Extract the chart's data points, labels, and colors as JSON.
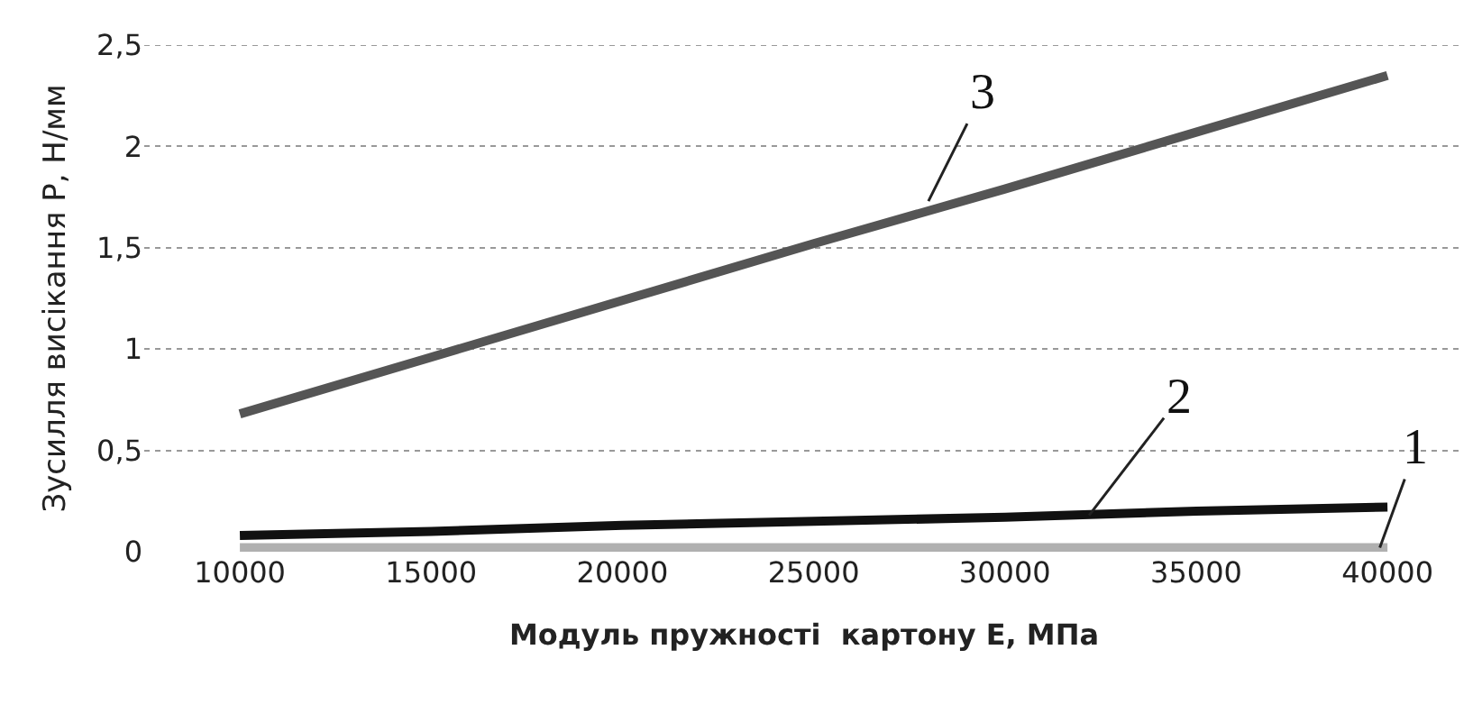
{
  "chart_data": {
    "type": "line",
    "xlabel": "Модуль пружності  картону E, МПа",
    "ylabel": "Зусилля висікання P, Н/мм",
    "x": [
      10000,
      15000,
      20000,
      25000,
      30000,
      35000,
      40000
    ],
    "series": [
      {
        "color": "#b0b0b0",
        "values": [
          0.02,
          0.02,
          0.02,
          0.02,
          0.02,
          0.02,
          0.02
        ]
      },
      {
        "color": "#111111",
        "values": [
          0.08,
          0.1,
          0.13,
          0.15,
          0.17,
          0.2,
          0.22
        ]
      },
      {
        "color": "#555555",
        "values": [
          0.68,
          0.96,
          1.24,
          1.52,
          1.79,
          2.07,
          2.35
        ]
      }
    ],
    "xlim": [
      7500,
      42000
    ],
    "xticks": [
      10000,
      15000,
      20000,
      25000,
      30000,
      35000,
      40000
    ],
    "ylim": [
      0,
      2.5
    ],
    "yticks": [
      0,
      {
        "value": 0.5,
        "label": "0,5"
      },
      1,
      {
        "value": 1.5,
        "label": "1,5"
      },
      2,
      {
        "value": 2.5,
        "label": "2,5"
      }
    ],
    "grid": "y",
    "marker": "none",
    "line_style": "solid",
    "annotations": [
      {
        "text": "1",
        "x": 39800,
        "y": 0.02
      },
      {
        "text": "2",
        "x": 32200,
        "y": 0.18
      },
      {
        "text": "3",
        "x": 28000,
        "y": 1.73
      }
    ]
  }
}
